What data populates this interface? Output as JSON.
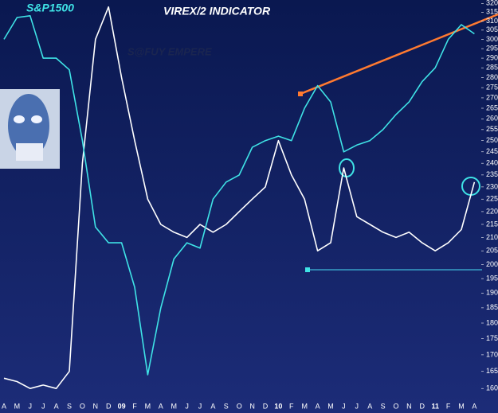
{
  "chart_data": {
    "type": "line",
    "watermark": "S@FUY EMPERE",
    "categories": [
      "A",
      "M",
      "J",
      "J",
      "A",
      "S",
      "O",
      "N",
      "D",
      "09",
      "F",
      "M",
      "A",
      "M",
      "J",
      "J",
      "A",
      "S",
      "O",
      "N",
      "D",
      "10",
      "F",
      "M",
      "A",
      "M",
      "J",
      "J",
      "A",
      "S",
      "O",
      "N",
      "D",
      "11",
      "F",
      "M",
      "A"
    ],
    "series": [
      {
        "name": "S&P1500",
        "color": "#3fe3e6",
        "values": [
          300,
          312,
          313,
          290,
          290,
          284,
          250,
          214,
          208,
          208,
          192,
          164,
          185,
          202,
          208,
          206,
          225,
          232,
          235,
          247,
          250,
          252,
          250,
          265,
          276,
          268,
          245,
          248,
          250,
          255,
          262,
          268,
          278,
          285,
          300,
          308,
          303
        ]
      },
      {
        "name": "VIREX/2 INDICATOR",
        "color": "#ffffff",
        "values": [
          163,
          162,
          160,
          161,
          160,
          165,
          240,
          300,
          318,
          280,
          250,
          225,
          215,
          212,
          210,
          215,
          212,
          215,
          220,
          225,
          230,
          250,
          235,
          225,
          205,
          208,
          238,
          218,
          215,
          212,
          210,
          212,
          208,
          205,
          208,
          213,
          232
        ]
      }
    ],
    "log_scale": true,
    "ylim": [
      158,
      322
    ],
    "yticks": [
      160,
      165,
      170,
      175,
      180,
      185,
      190,
      195,
      200,
      205,
      210,
      215,
      220,
      225,
      230,
      235,
      240,
      245,
      250,
      255,
      260,
      265,
      270,
      275,
      280,
      285,
      290,
      295,
      300,
      305,
      310,
      315,
      320
    ]
  }
}
